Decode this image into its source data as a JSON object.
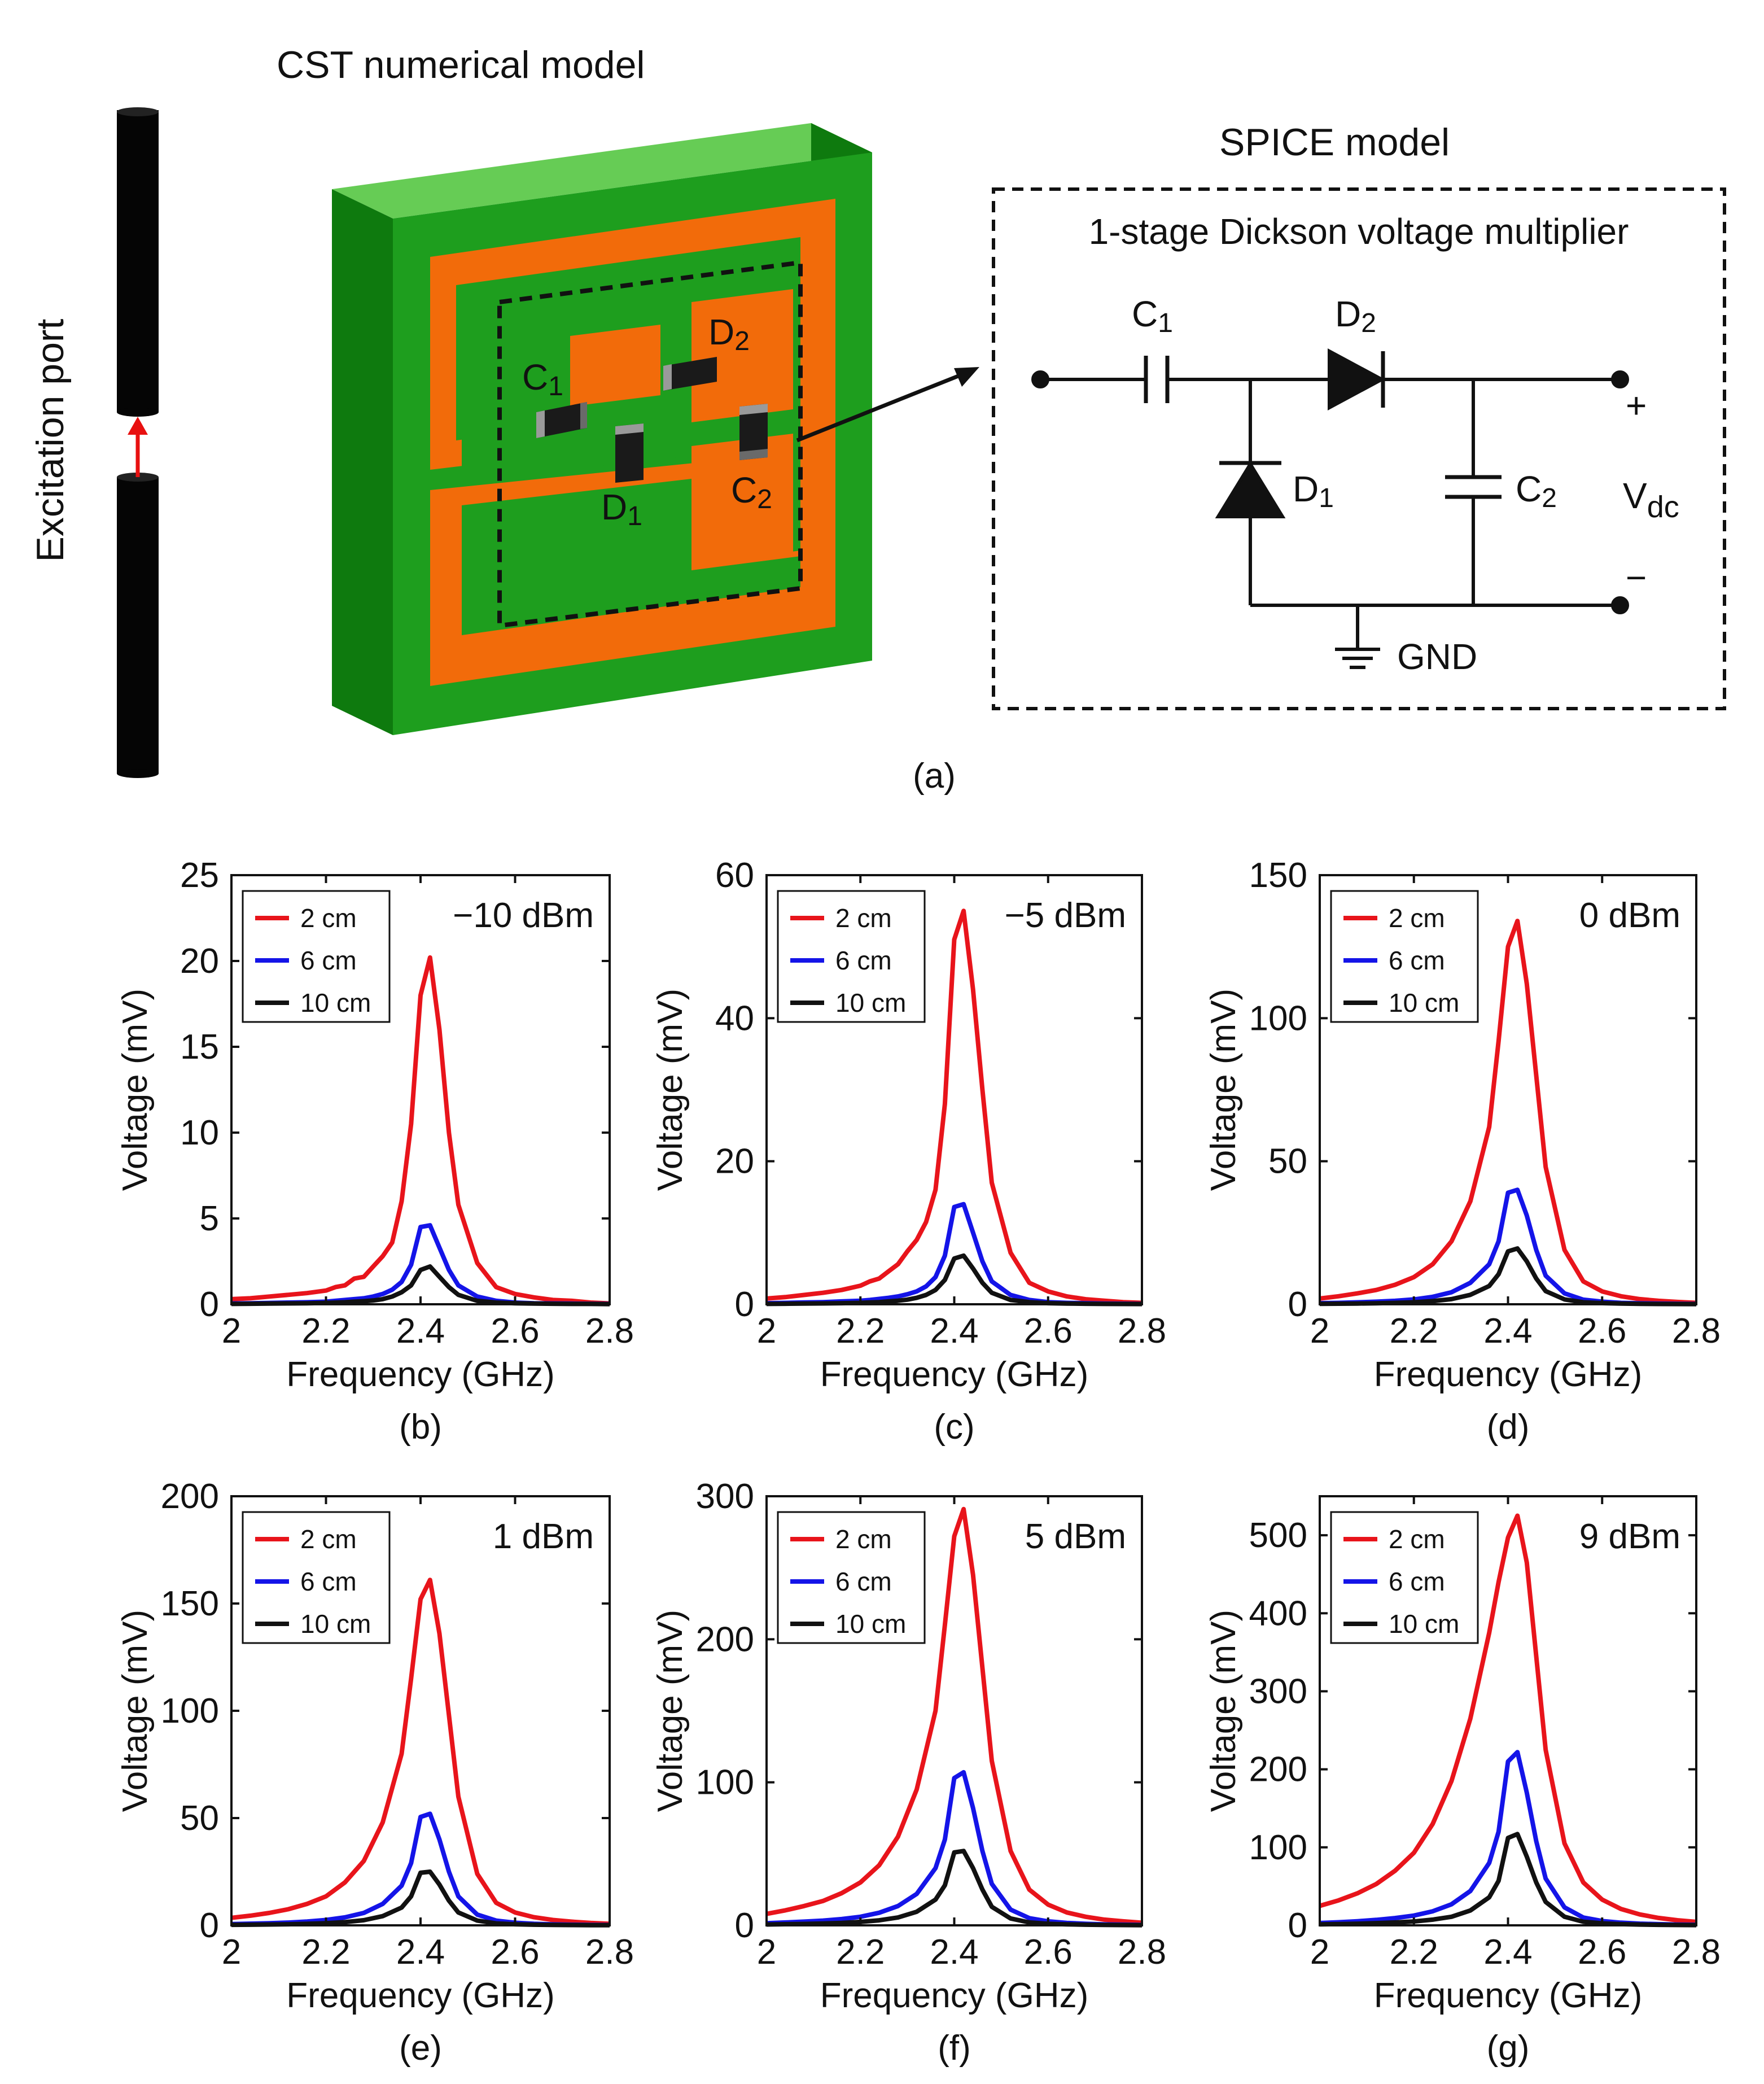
{
  "figure_a": {
    "cst_title": "CST numerical model",
    "spice_title": "SPICE model",
    "port_label": "Excitation port",
    "box_title": "1-stage Dickson voltage multiplier",
    "labels": {
      "c1": "C",
      "c1_sub": "1",
      "d1": "D",
      "d1_sub": "1",
      "d2": "D",
      "d2_sub": "2",
      "c2": "C",
      "c2_sub": "2"
    },
    "circuit_labels": {
      "c1": "C",
      "c1_sub": "1",
      "d1": "D",
      "d1_sub": "1",
      "d2": "D",
      "d2_sub": "2",
      "c2": "C",
      "c2_sub": "2",
      "vdc": "V",
      "vdc_sub": "dc",
      "plus": "+",
      "minus": "−",
      "gnd": "GND"
    },
    "caption": "(a)",
    "colors": {
      "substrate": "#1e9e1e",
      "copper": "#f26b0a",
      "component": "#1a1a1a"
    }
  },
  "chart_data": [
    {
      "type": "line",
      "caption": "(b)",
      "power": "−10 dBm",
      "xlabel": "Frequency (GHz)",
      "ylabel": "Voltage (mV)",
      "xlim": [
        2,
        2.8
      ],
      "ylim": [
        0,
        25
      ],
      "xticks": [
        "2",
        "2.2",
        "2.4",
        "2.6",
        "2.8"
      ],
      "yticks": [
        "0",
        "5",
        "10",
        "15",
        "20",
        "25"
      ],
      "x": [
        2.0,
        2.04,
        2.08,
        2.12,
        2.16,
        2.2,
        2.22,
        2.24,
        2.26,
        2.28,
        2.3,
        2.32,
        2.34,
        2.36,
        2.38,
        2.4,
        2.42,
        2.44,
        2.46,
        2.48,
        2.52,
        2.56,
        2.6,
        2.64,
        2.68,
        2.72,
        2.76,
        2.8
      ],
      "series": [
        {
          "name": "2 cm",
          "color": "#e8141b",
          "values": [
            0.3,
            0.35,
            0.45,
            0.55,
            0.65,
            0.8,
            1.0,
            1.1,
            1.5,
            1.6,
            2.2,
            2.8,
            3.6,
            6.0,
            10.5,
            18.0,
            20.2,
            16.0,
            10.0,
            5.8,
            2.4,
            1.0,
            0.6,
            0.4,
            0.25,
            0.2,
            0.1,
            0.05
          ]
        },
        {
          "name": "6 cm",
          "color": "#1414e8",
          "values": [
            0.05,
            0.06,
            0.08,
            0.1,
            0.12,
            0.15,
            0.2,
            0.25,
            0.3,
            0.35,
            0.45,
            0.6,
            0.85,
            1.3,
            2.3,
            4.5,
            4.6,
            3.3,
            2.0,
            1.1,
            0.45,
            0.2,
            0.1,
            0.06,
            0.05,
            0.04,
            0.03,
            0.02
          ]
        },
        {
          "name": "10 cm",
          "color": "#111111",
          "values": [
            0.02,
            0.03,
            0.04,
            0.05,
            0.06,
            0.08,
            0.1,
            0.12,
            0.15,
            0.18,
            0.22,
            0.3,
            0.45,
            0.7,
            1.1,
            2.0,
            2.2,
            1.6,
            1.0,
            0.55,
            0.2,
            0.1,
            0.06,
            0.04,
            0.03,
            0.02,
            0.02,
            0.01
          ]
        }
      ]
    },
    {
      "type": "line",
      "caption": "(c)",
      "power": "−5 dBm",
      "xlabel": "Frequency (GHz)",
      "ylabel": "Voltage (mV)",
      "xlim": [
        2,
        2.8
      ],
      "ylim": [
        0,
        60
      ],
      "xticks": [
        "2",
        "2.2",
        "2.4",
        "2.6",
        "2.8"
      ],
      "yticks": [
        "0",
        "20",
        "40",
        "60"
      ],
      "x": [
        2.0,
        2.04,
        2.08,
        2.12,
        2.16,
        2.2,
        2.22,
        2.24,
        2.26,
        2.28,
        2.3,
        2.32,
        2.34,
        2.36,
        2.38,
        2.4,
        2.42,
        2.44,
        2.46,
        2.48,
        2.52,
        2.56,
        2.6,
        2.64,
        2.68,
        2.72,
        2.76,
        2.8
      ],
      "series": [
        {
          "name": "2 cm",
          "color": "#e8141b",
          "values": [
            0.8,
            1.0,
            1.3,
            1.6,
            2.0,
            2.6,
            3.2,
            3.6,
            4.6,
            5.6,
            7.4,
            9.0,
            11.5,
            16.0,
            28.0,
            51.0,
            55.0,
            44.0,
            30.0,
            17.0,
            7.2,
            3.0,
            1.8,
            1.1,
            0.7,
            0.5,
            0.3,
            0.2
          ]
        },
        {
          "name": "6 cm",
          "color": "#1414e8",
          "values": [
            0.15,
            0.2,
            0.25,
            0.3,
            0.4,
            0.5,
            0.6,
            0.75,
            0.9,
            1.1,
            1.4,
            1.8,
            2.5,
            3.8,
            6.8,
            13.6,
            14.0,
            10.0,
            6.0,
            3.2,
            1.3,
            0.6,
            0.3,
            0.2,
            0.15,
            0.1,
            0.08,
            0.05
          ]
        },
        {
          "name": "10 cm",
          "color": "#111111",
          "values": [
            0.05,
            0.07,
            0.1,
            0.12,
            0.15,
            0.2,
            0.25,
            0.3,
            0.4,
            0.5,
            0.65,
            0.9,
            1.3,
            2.0,
            3.4,
            6.4,
            6.8,
            5.0,
            3.0,
            1.6,
            0.6,
            0.3,
            0.15,
            0.1,
            0.07,
            0.05,
            0.04,
            0.03
          ]
        }
      ]
    },
    {
      "type": "line",
      "caption": "(d)",
      "power": "0 dBm",
      "xlabel": "Frequency (GHz)",
      "ylabel": "Voltage (mV)",
      "xlim": [
        2,
        2.8
      ],
      "ylim": [
        0,
        150
      ],
      "xticks": [
        "2",
        "2.2",
        "2.4",
        "2.6",
        "2.8"
      ],
      "yticks": [
        "0",
        "50",
        "100",
        "150"
      ],
      "x": [
        2.0,
        2.04,
        2.08,
        2.12,
        2.16,
        2.2,
        2.24,
        2.28,
        2.32,
        2.36,
        2.38,
        2.4,
        2.42,
        2.44,
        2.46,
        2.48,
        2.52,
        2.56,
        2.6,
        2.64,
        2.68,
        2.72,
        2.76,
        2.8
      ],
      "series": [
        {
          "name": "2 cm",
          "color": "#e8141b",
          "values": [
            2.0,
            2.8,
            3.8,
            5.0,
            6.8,
            9.5,
            14.0,
            22.0,
            36.0,
            62.0,
            92.0,
            125.0,
            134.0,
            112.0,
            80.0,
            48.0,
            19.0,
            8.0,
            4.5,
            2.8,
            1.8,
            1.2,
            0.8,
            0.5
          ]
        },
        {
          "name": "6 cm",
          "color": "#1414e8",
          "values": [
            0.4,
            0.5,
            0.7,
            0.9,
            1.2,
            1.7,
            2.6,
            4.2,
            7.5,
            14.0,
            22.0,
            39.0,
            40.0,
            31.0,
            19.0,
            10.0,
            3.8,
            1.6,
            0.9,
            0.5,
            0.35,
            0.25,
            0.18,
            0.12
          ]
        },
        {
          "name": "10 cm",
          "color": "#111111",
          "values": [
            0.15,
            0.2,
            0.25,
            0.35,
            0.5,
            0.7,
            1.1,
            1.8,
            3.3,
            6.4,
            10.5,
            18.5,
            19.5,
            15.0,
            9.0,
            4.6,
            1.7,
            0.7,
            0.4,
            0.25,
            0.15,
            0.1,
            0.08,
            0.05
          ]
        }
      ]
    },
    {
      "type": "line",
      "caption": "(e)",
      "power": "1 dBm",
      "xlabel": "Frequency (GHz)",
      "ylabel": "Voltage (mV)",
      "xlim": [
        2,
        2.8
      ],
      "ylim": [
        0,
        200
      ],
      "xticks": [
        "2",
        "2.2",
        "2.4",
        "2.6",
        "2.8"
      ],
      "yticks": [
        "0",
        "50",
        "100",
        "150",
        "200"
      ],
      "x": [
        2.0,
        2.04,
        2.08,
        2.12,
        2.16,
        2.2,
        2.24,
        2.28,
        2.32,
        2.36,
        2.38,
        2.4,
        2.42,
        2.44,
        2.46,
        2.48,
        2.52,
        2.56,
        2.6,
        2.64,
        2.68,
        2.72,
        2.76,
        2.8
      ],
      "series": [
        {
          "name": "2 cm",
          "color": "#e8141b",
          "values": [
            3.5,
            4.5,
            5.8,
            7.5,
            10.0,
            13.5,
            20.0,
            30.0,
            48.0,
            80.0,
            115.0,
            152.0,
            161.0,
            136.0,
            98.0,
            60.0,
            24.0,
            10.5,
            6.0,
            3.8,
            2.5,
            1.7,
            1.1,
            0.7
          ]
        },
        {
          "name": "6 cm",
          "color": "#1414e8",
          "values": [
            0.6,
            0.8,
            1.0,
            1.3,
            1.8,
            2.5,
            3.7,
            5.8,
            10.0,
            18.5,
            29.0,
            50.5,
            52.0,
            40.0,
            25.0,
            13.5,
            5.0,
            2.2,
            1.2,
            0.7,
            0.45,
            0.3,
            0.2,
            0.15
          ]
        },
        {
          "name": "10 cm",
          "color": "#111111",
          "values": [
            0.25,
            0.3,
            0.4,
            0.5,
            0.7,
            1.0,
            1.5,
            2.4,
            4.3,
            8.3,
            13.5,
            24.5,
            25.0,
            19.0,
            11.5,
            6.0,
            2.2,
            0.9,
            0.5,
            0.3,
            0.2,
            0.13,
            0.09,
            0.06
          ]
        }
      ]
    },
    {
      "type": "line",
      "caption": "(f)",
      "power": "5 dBm",
      "xlabel": "Frequency (GHz)",
      "ylabel": "Voltage (mV)",
      "xlim": [
        2,
        2.8
      ],
      "ylim": [
        0,
        300
      ],
      "xticks": [
        "2",
        "2.2",
        "2.4",
        "2.6",
        "2.8"
      ],
      "yticks": [
        "0",
        "100",
        "200",
        "300"
      ],
      "x": [
        2.0,
        2.04,
        2.08,
        2.12,
        2.16,
        2.2,
        2.24,
        2.28,
        2.32,
        2.36,
        2.38,
        2.4,
        2.42,
        2.44,
        2.46,
        2.48,
        2.52,
        2.56,
        2.6,
        2.64,
        2.68,
        2.72,
        2.76,
        2.8
      ],
      "series": [
        {
          "name": "2 cm",
          "color": "#e8141b",
          "values": [
            8.0,
            10.5,
            13.5,
            17.0,
            22.5,
            30.0,
            42.0,
            62.0,
            95.0,
            150.0,
            210.0,
            272.0,
            291.0,
            245.0,
            180.0,
            115.0,
            52.0,
            25.0,
            14.5,
            9.0,
            6.0,
            4.0,
            2.8,
            1.8
          ]
        },
        {
          "name": "6 cm",
          "color": "#1414e8",
          "values": [
            1.5,
            2.0,
            2.6,
            3.3,
            4.4,
            6.0,
            8.8,
            13.5,
            22.0,
            40.0,
            60.0,
            103.0,
            107.0,
            82.0,
            52.0,
            29.0,
            11.0,
            5.0,
            2.8,
            1.7,
            1.1,
            0.7,
            0.5,
            0.3
          ]
        },
        {
          "name": "10 cm",
          "color": "#111111",
          "values": [
            0.6,
            0.8,
            1.0,
            1.3,
            1.7,
            2.4,
            3.5,
            5.5,
            9.5,
            18.0,
            28.0,
            51.0,
            52.0,
            40.0,
            25.0,
            13.0,
            4.8,
            2.0,
            1.1,
            0.7,
            0.45,
            0.3,
            0.2,
            0.12
          ]
        }
      ]
    },
    {
      "type": "line",
      "caption": "(g)",
      "power": "9 dBm",
      "xlabel": "Frequency (GHz)",
      "ylabel": "Voltage (mV)",
      "xlim": [
        2,
        2.8
      ],
      "ylim": [
        0,
        550
      ],
      "xticks": [
        "2",
        "2.2",
        "2.4",
        "2.6",
        "2.8"
      ],
      "yticks": [
        "0",
        "100",
        "200",
        "300",
        "400",
        "500"
      ],
      "x": [
        2.0,
        2.04,
        2.08,
        2.12,
        2.16,
        2.2,
        2.24,
        2.28,
        2.32,
        2.36,
        2.38,
        2.4,
        2.42,
        2.44,
        2.46,
        2.48,
        2.52,
        2.56,
        2.6,
        2.64,
        2.68,
        2.72,
        2.76,
        2.8
      ],
      "series": [
        {
          "name": "2 cm",
          "color": "#e8141b",
          "values": [
            25.0,
            32.0,
            41.0,
            53.0,
            70.0,
            93.0,
            130.0,
            185.0,
            265.0,
            375.0,
            440.0,
            497.0,
            525.0,
            465.0,
            345.0,
            225.0,
            105.0,
            55.0,
            33.0,
            21.0,
            14.0,
            9.5,
            6.5,
            4.5
          ]
        },
        {
          "name": "6 cm",
          "color": "#1414e8",
          "values": [
            3.0,
            4.0,
            5.3,
            7.0,
            9.3,
            12.5,
            18.0,
            27.0,
            44.0,
            80.0,
            120.0,
            210.0,
            222.0,
            170.0,
            108.0,
            60.0,
            23.0,
            10.0,
            5.6,
            3.4,
            2.2,
            1.5,
            1.0,
            0.7
          ]
        },
        {
          "name": "10 cm",
          "color": "#111111",
          "values": [
            1.2,
            1.6,
            2.1,
            2.8,
            3.7,
            5.0,
            7.3,
            11.0,
            19.0,
            36.0,
            57.0,
            112.0,
            117.0,
            88.0,
            55.0,
            30.0,
            11.0,
            4.6,
            2.5,
            1.5,
            1.0,
            0.65,
            0.45,
            0.3
          ]
        }
      ]
    }
  ]
}
